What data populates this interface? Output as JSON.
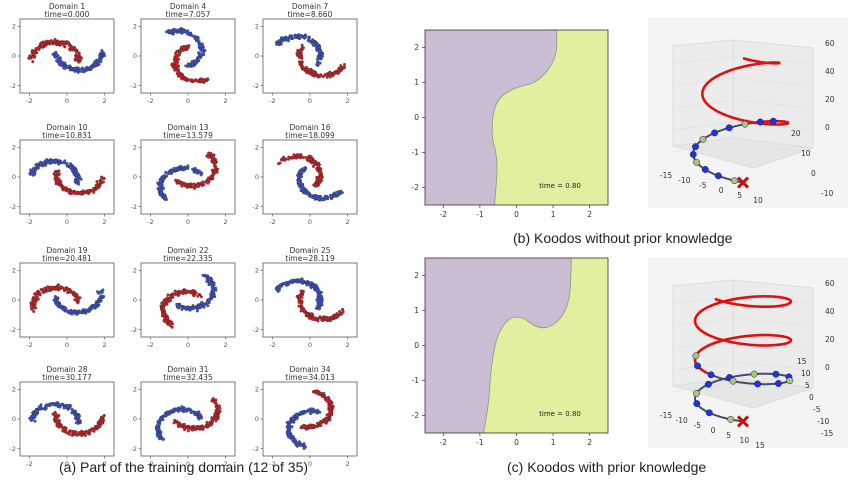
{
  "captions": {
    "a": "(a) Part of the training domain (12 of 35)",
    "b": "(b) Koodos without prior knowledge",
    "c": "(c) Koodos with prior knowledge"
  },
  "colors": {
    "blue": "#4155c8",
    "red": "#c8262a",
    "region_purple": "#cbbdd3",
    "region_yellow": "#e2ef9f",
    "traj_red": "#e01010",
    "traj_blue": "#2035d8",
    "traj_green": "#a8c878"
  },
  "chart_data": [
    {
      "type": "scatter",
      "panel": "a",
      "xlim": [
        -2.5,
        2.5
      ],
      "ylim": [
        -2.5,
        2.5
      ],
      "xticks": [
        "-2",
        "0",
        "2"
      ],
      "yticks": [
        "2",
        "0",
        "-2"
      ],
      "series": [
        {
          "values": "blue moon"
        },
        {
          "values": "red moon"
        }
      ],
      "domains": [
        {
          "title": "Domain 1",
          "time": "time=0.000",
          "rotation_deg": 0
        },
        {
          "title": "Domain 4",
          "time": "time=7.057",
          "rotation_deg": 114
        },
        {
          "title": "Domain 7",
          "time": "time=8.660",
          "rotation_deg": 148
        },
        {
          "title": "Domain 10",
          "time": "time=10.831",
          "rotation_deg": 168
        },
        {
          "title": "Domain 13",
          "time": "time=13.579",
          "rotation_deg": 225
        },
        {
          "title": "Domain 16",
          "time": "time=18.099",
          "rotation_deg": 320
        },
        {
          "title": "Domain 19",
          "time": "time=20.481",
          "rotation_deg": 10
        },
        {
          "title": "Domain 22",
          "time": "time=22.335",
          "rotation_deg": 55
        },
        {
          "title": "Domain 25",
          "time": "time=28.119",
          "rotation_deg": 150
        },
        {
          "title": "Domain 28",
          "time": "time=30.177",
          "rotation_deg": 175
        },
        {
          "title": "Domain 31",
          "time": "time=32.435",
          "rotation_deg": 215
        },
        {
          "title": "Domain 34",
          "time": "time=34.013",
          "rotation_deg": 255
        }
      ]
    },
    {
      "type": "heatmap",
      "panel": "b-boundary",
      "xlim": [
        -2.5,
        2.5
      ],
      "ylim": [
        -2.5,
        2.5
      ],
      "xticks": [
        "-2",
        "-1",
        "0",
        "1",
        "2"
      ],
      "yticks": [
        "2",
        "1",
        "0",
        "-1",
        "-2"
      ],
      "annotation": "time = 0.80",
      "boundary": [
        [
          1.1,
          2.5
        ],
        [
          1.1,
          1.7
        ],
        [
          0.6,
          1.0
        ],
        [
          -0.1,
          0.85
        ],
        [
          -0.6,
          0.45
        ],
        [
          -0.7,
          -0.5
        ],
        [
          -0.5,
          -1.2
        ],
        [
          -0.6,
          -2.5
        ]
      ]
    },
    {
      "type": "line",
      "panel": "b-trajectory",
      "xticks": [
        "-15",
        "-10",
        "-5",
        "0",
        "5",
        "10"
      ],
      "yticks": [
        "-10",
        "0",
        "10",
        "20"
      ],
      "zticks": [
        "0",
        "20",
        "40",
        "60"
      ]
    },
    {
      "type": "heatmap",
      "panel": "c-boundary",
      "xlim": [
        -2.5,
        2.5
      ],
      "ylim": [
        -2.5,
        2.5
      ],
      "xticks": [
        "-2",
        "-1",
        "0",
        "1",
        "2"
      ],
      "yticks": [
        "2",
        "1",
        "0",
        "-1",
        "-2"
      ],
      "annotation": "time = 0.80",
      "boundary": [
        [
          1.5,
          2.5
        ],
        [
          1.45,
          1.0
        ],
        [
          0.75,
          0.35
        ],
        [
          0.0,
          0.95
        ],
        [
          -0.5,
          0.45
        ],
        [
          -0.7,
          -0.6
        ],
        [
          -0.75,
          -1.6
        ],
        [
          -0.9,
          -2.5
        ]
      ]
    },
    {
      "type": "line",
      "panel": "c-trajectory",
      "xticks": [
        "-15",
        "-10",
        "-5",
        "0",
        "5",
        "10",
        "15"
      ],
      "yticks": [
        "-15",
        "-10",
        "-5",
        "0",
        "5",
        "10",
        "15"
      ],
      "zticks": [
        "0",
        "20",
        "40",
        "60"
      ]
    }
  ]
}
